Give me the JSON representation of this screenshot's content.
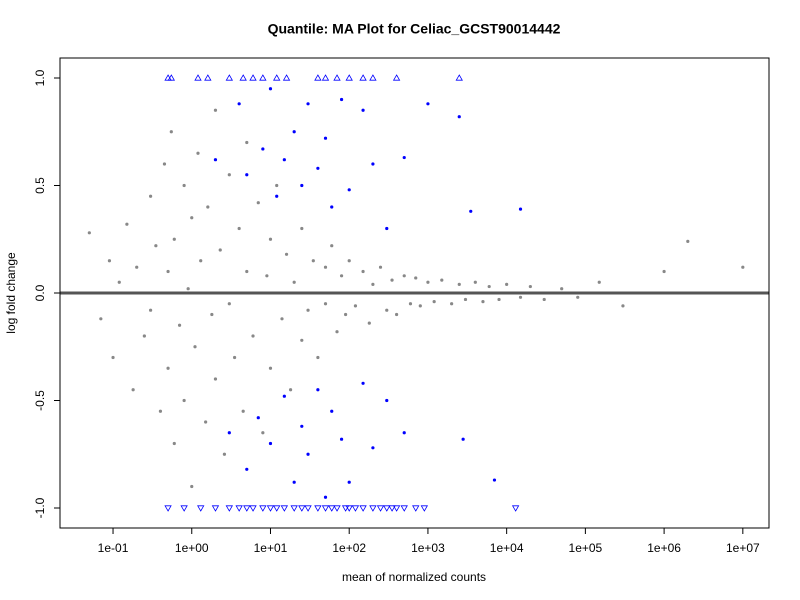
{
  "chart_data": {
    "type": "scatter",
    "title": "Quantile: MA Plot for Celiac_GCST90014442",
    "xlabel": "mean of normalized counts",
    "ylabel": "log fold change",
    "xscale": "log",
    "xlim": [
      0.0212,
      21500000
    ],
    "ylim": [
      -1.093,
      1.093
    ],
    "xticks": [
      {
        "value": 0.1,
        "label": "1e-01"
      },
      {
        "value": 1,
        "label": "1e+00"
      },
      {
        "value": 10,
        "label": "1e+01"
      },
      {
        "value": 100,
        "label": "1e+02"
      },
      {
        "value": 1000,
        "label": "1e+03"
      },
      {
        "value": 10000,
        "label": "1e+04"
      },
      {
        "value": 100000,
        "label": "1e+05"
      },
      {
        "value": 1000000,
        "label": "1e+06"
      },
      {
        "value": 10000000,
        "label": "1e+07"
      }
    ],
    "yticks": [
      {
        "value": -1,
        "label": "-1.0"
      },
      {
        "value": -0.5,
        "label": "-0.5"
      },
      {
        "value": 0,
        "label": "0.0"
      },
      {
        "value": 0.5,
        "label": "0.5"
      },
      {
        "value": 1,
        "label": "1.0"
      }
    ],
    "hline": 0,
    "hline_color": "#555555",
    "series": [
      {
        "color": "#888888",
        "marker": "circle",
        "x": [
          0.05,
          0.07,
          0.09,
          0.1,
          0.12,
          0.15,
          0.18,
          0.2,
          0.25,
          0.3,
          0.3,
          0.35,
          0.4,
          0.45,
          0.5,
          0.5,
          0.55,
          0.6,
          0.6,
          0.7,
          0.8,
          0.8,
          0.9,
          1,
          1,
          1.1,
          1.2,
          1.3,
          1.5,
          1.6,
          1.8,
          2,
          2,
          2.3,
          2.6,
          3,
          3,
          3.5,
          4,
          4.5,
          5,
          5,
          6,
          7,
          8,
          9,
          10,
          10,
          12,
          14,
          16,
          18,
          20,
          25,
          25,
          30,
          35,
          40,
          50,
          50,
          60,
          70,
          80,
          90,
          100,
          120,
          150,
          180,
          200,
          250,
          300,
          350,
          400,
          500,
          600,
          700,
          800,
          1000,
          1200,
          1500,
          2000,
          2500,
          3000,
          4000,
          5000,
          6000,
          8000,
          10000,
          15000,
          20000,
          30000,
          50000,
          80000,
          150000,
          300000,
          1000000,
          2000000,
          10000000
        ],
        "values": [
          0.28,
          -0.12,
          0.15,
          -0.3,
          0.05,
          0.32,
          -0.45,
          0.12,
          -0.2,
          0.45,
          -0.08,
          0.22,
          -0.55,
          0.6,
          -0.35,
          0.1,
          0.75,
          -0.7,
          0.25,
          -0.15,
          0.5,
          -0.5,
          0.02,
          0.35,
          -0.9,
          -0.25,
          0.65,
          0.15,
          -0.6,
          0.4,
          -0.1,
          0.85,
          -0.4,
          0.2,
          -0.75,
          0.55,
          -0.05,
          -0.3,
          0.3,
          -0.55,
          0.1,
          0.7,
          -0.2,
          0.42,
          -0.65,
          0.08,
          -0.35,
          0.25,
          0.5,
          -0.12,
          0.18,
          -0.45,
          0.05,
          0.3,
          -0.22,
          -0.08,
          0.15,
          -0.3,
          0.12,
          -0.05,
          0.22,
          -0.18,
          0.08,
          -0.1,
          0.15,
          -0.06,
          0.1,
          -0.14,
          0.04,
          0.12,
          -0.08,
          0.06,
          -0.1,
          0.08,
          -0.05,
          0.07,
          -0.06,
          0.05,
          -0.04,
          0.06,
          -0.05,
          0.04,
          -0.03,
          0.05,
          -0.04,
          0.03,
          -0.03,
          0.04,
          -0.02,
          0.03,
          -0.03,
          0.02,
          -0.02,
          0.05,
          -0.06,
          0.1,
          0.24,
          0.12
        ]
      },
      {
        "color": "#0000ff",
        "marker": "circle",
        "x": [
          2,
          4,
          5,
          8,
          10,
          12,
          15,
          20,
          25,
          30,
          40,
          50,
          60,
          80,
          100,
          150,
          200,
          300,
          500,
          1000,
          2500,
          3500,
          15000,
          3,
          5,
          7,
          10,
          15,
          20,
          25,
          30,
          40,
          50,
          60,
          80,
          100,
          150,
          200,
          300,
          500,
          2800,
          7000
        ],
        "values": [
          0.62,
          0.88,
          0.55,
          0.67,
          0.95,
          0.45,
          0.62,
          0.75,
          0.5,
          0.88,
          0.58,
          0.72,
          0.4,
          0.9,
          0.48,
          0.85,
          0.6,
          0.3,
          0.63,
          0.88,
          0.82,
          0.38,
          0.39,
          -0.65,
          -0.82,
          -0.58,
          -0.7,
          -0.48,
          -0.88,
          -0.62,
          -0.75,
          -0.45,
          -0.95,
          -0.55,
          -0.68,
          -0.88,
          -0.42,
          -0.72,
          -0.5,
          -0.65,
          -0.68,
          -0.87
        ]
      },
      {
        "color": "#0000ff",
        "marker": "triangle-up",
        "x": [
          0.5,
          0.55,
          1.2,
          1.6,
          3,
          4.5,
          6,
          8,
          12,
          16,
          40,
          50,
          70,
          100,
          150,
          200,
          400,
          2500
        ],
        "values": [
          1,
          1,
          1,
          1,
          1,
          1,
          1,
          1,
          1,
          1,
          1,
          1,
          1,
          1,
          1,
          1,
          1,
          1
        ]
      },
      {
        "color": "#0000ff",
        "marker": "triangle-down",
        "x": [
          0.5,
          0.8,
          1.3,
          2,
          3,
          4,
          5,
          6,
          8,
          10,
          12,
          15,
          20,
          25,
          30,
          40,
          50,
          60,
          70,
          90,
          100,
          120,
          150,
          200,
          250,
          300,
          350,
          400,
          500,
          700,
          900,
          13000
        ],
        "values": [
          -1,
          -1,
          -1,
          -1,
          -1,
          -1,
          -1,
          -1,
          -1,
          -1,
          -1,
          -1,
          -1,
          -1,
          -1,
          -1,
          -1,
          -1,
          -1,
          -1,
          -1,
          -1,
          -1,
          -1,
          -1,
          -1,
          -1,
          -1,
          -1,
          -1,
          -1,
          -1
        ]
      }
    ]
  }
}
